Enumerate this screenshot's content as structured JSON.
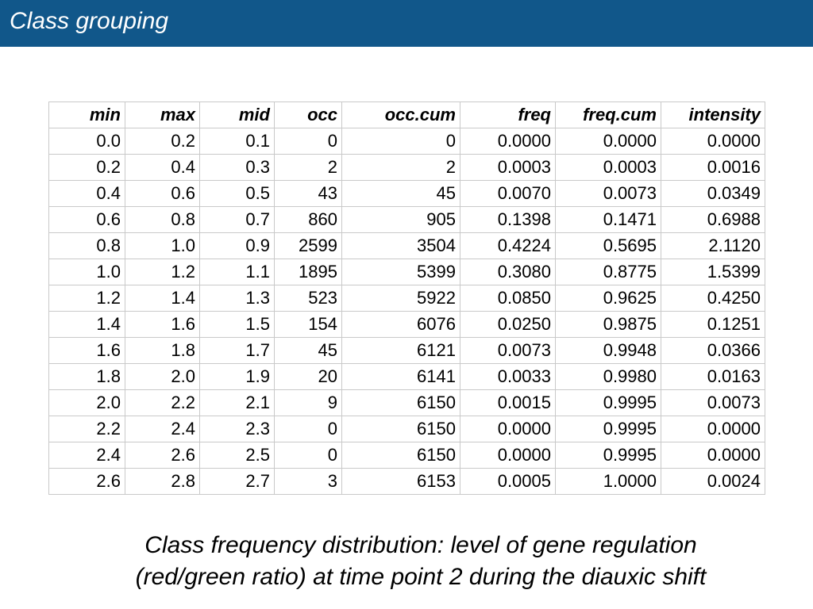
{
  "header": {
    "title": "Class grouping"
  },
  "table": {
    "columns": [
      "min",
      "max",
      "mid",
      "occ",
      "occ.cum",
      "freq",
      "freq.cum",
      "intensity"
    ],
    "rows": [
      [
        "0.0",
        "0.2",
        "0.1",
        "0",
        "0",
        "0.0000",
        "0.0000",
        "0.0000"
      ],
      [
        "0.2",
        "0.4",
        "0.3",
        "2",
        "2",
        "0.0003",
        "0.0003",
        "0.0016"
      ],
      [
        "0.4",
        "0.6",
        "0.5",
        "43",
        "45",
        "0.0070",
        "0.0073",
        "0.0349"
      ],
      [
        "0.6",
        "0.8",
        "0.7",
        "860",
        "905",
        "0.1398",
        "0.1471",
        "0.6988"
      ],
      [
        "0.8",
        "1.0",
        "0.9",
        "2599",
        "3504",
        "0.4224",
        "0.5695",
        "2.1120"
      ],
      [
        "1.0",
        "1.2",
        "1.1",
        "1895",
        "5399",
        "0.3080",
        "0.8775",
        "1.5399"
      ],
      [
        "1.2",
        "1.4",
        "1.3",
        "523",
        "5922",
        "0.0850",
        "0.9625",
        "0.4250"
      ],
      [
        "1.4",
        "1.6",
        "1.5",
        "154",
        "6076",
        "0.0250",
        "0.9875",
        "0.1251"
      ],
      [
        "1.6",
        "1.8",
        "1.7",
        "45",
        "6121",
        "0.0073",
        "0.9948",
        "0.0366"
      ],
      [
        "1.8",
        "2.0",
        "1.9",
        "20",
        "6141",
        "0.0033",
        "0.9980",
        "0.0163"
      ],
      [
        "2.0",
        "2.2",
        "2.1",
        "9",
        "6150",
        "0.0015",
        "0.9995",
        "0.0073"
      ],
      [
        "2.2",
        "2.4",
        "2.3",
        "0",
        "6150",
        "0.0000",
        "0.9995",
        "0.0000"
      ],
      [
        "2.4",
        "2.6",
        "2.5",
        "0",
        "6150",
        "0.0000",
        "0.9995",
        "0.0000"
      ],
      [
        "2.6",
        "2.8",
        "2.7",
        "3",
        "6153",
        "0.0005",
        "1.0000",
        "0.0024"
      ]
    ]
  },
  "caption": {
    "line1": "Class frequency distribution: level of gene regulation",
    "line2": "(red/green ratio) at time point 2 during the diauxic shift"
  },
  "colors": {
    "header_background": "#11578a",
    "header_text": "#ffffff",
    "grid_lines": "#c9c9c9"
  }
}
